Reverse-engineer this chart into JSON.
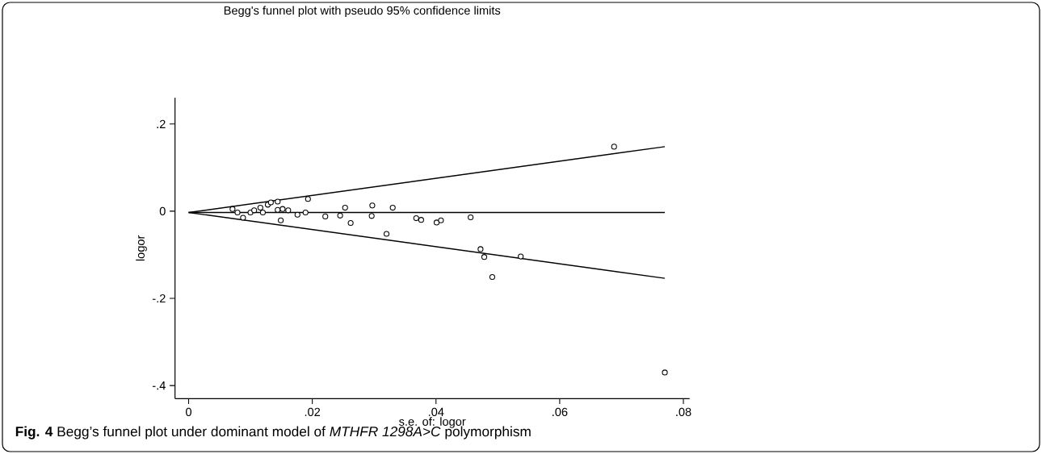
{
  "chart_data": {
    "type": "scatter",
    "title": "Begg's funnel plot with pseudo 95% confidence limits",
    "xlabel": "s.e. of: logor",
    "ylabel": "logor",
    "annotations": [
      "**Fig. 4** Begg’s funnel plot under dominant model of *MTHFR 1298A>C* polymorphism"
    ],
    "xlim": [
      -0.0022,
      0.081
    ],
    "ylim": [
      -0.43,
      0.26
    ],
    "xticks": [
      {
        "value": 0,
        "label": "0"
      },
      {
        "value": 0.02,
        "label": ".02"
      },
      {
        "value": 0.04,
        "label": ".04"
      },
      {
        "value": 0.06,
        "label": ".06"
      },
      {
        "value": 0.08,
        "label": ".08"
      }
    ],
    "yticks": [
      {
        "value": -0.4,
        "label": "-.4"
      },
      {
        "value": -0.2,
        "label": "-.2"
      },
      {
        "value": 0,
        "label": "0"
      },
      {
        "value": 0.2,
        "label": ".2"
      }
    ],
    "series": [
      {
        "type": "line",
        "color": "#000000",
        "marker": "none",
        "x": [
          0,
          0.077
        ],
        "values": [
          -0.003,
          0.148
        ]
      },
      {
        "type": "line",
        "color": "#000000",
        "marker": "none",
        "x": [
          0,
          0.077
        ],
        "values": [
          -0.003,
          -0.003
        ]
      },
      {
        "type": "line",
        "color": "#000000",
        "marker": "none",
        "x": [
          0,
          0.077
        ],
        "values": [
          -0.003,
          -0.154
        ]
      },
      {
        "type": "scatter",
        "color": "#000000",
        "marker": "circle",
        "x": [
          0.0071,
          0.0079,
          0.0088,
          0.01,
          0.0106,
          0.0116,
          0.012,
          0.0128,
          0.0133,
          0.0144,
          0.0144,
          0.0149,
          0.0152,
          0.0161,
          0.0176,
          0.0189,
          0.0193,
          0.0221,
          0.0245,
          0.0253,
          0.0262,
          0.0297,
          0.0296,
          0.033,
          0.032,
          0.0368,
          0.0376,
          0.0401,
          0.0408,
          0.0456,
          0.0472,
          0.0478,
          0.0537,
          0.0491,
          0.0688,
          0.077
        ],
        "values": [
          0.005,
          -0.003,
          -0.015,
          -0.003,
          0.002,
          0.008,
          -0.003,
          0.015,
          0.02,
          0.022,
          0.003,
          -0.021,
          0.005,
          0.002,
          -0.008,
          -0.003,
          0.028,
          -0.012,
          -0.01,
          0.008,
          -0.027,
          0.013,
          -0.011,
          0.008,
          -0.052,
          -0.016,
          -0.02,
          -0.026,
          -0.021,
          -0.014,
          -0.087,
          -0.105,
          -0.104,
          -0.151,
          0.148,
          -0.37
        ]
      }
    ]
  }
}
